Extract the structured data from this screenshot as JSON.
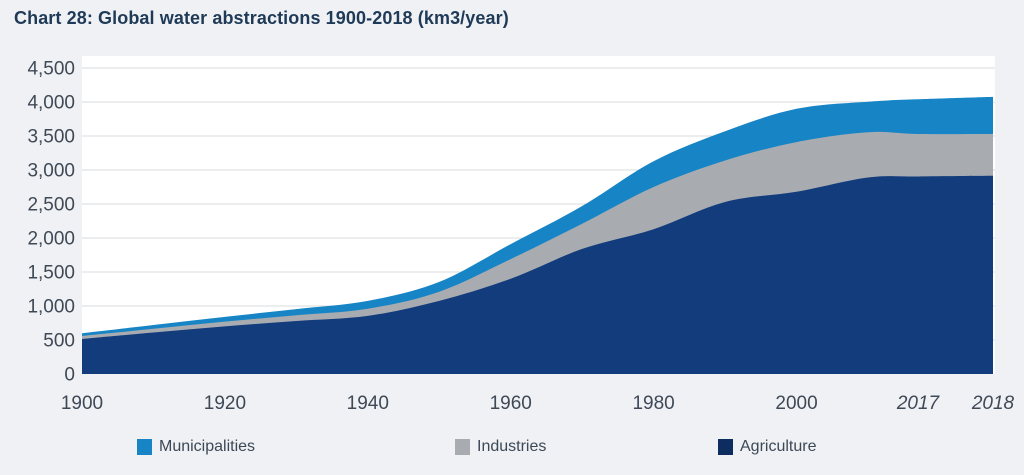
{
  "title": "Chart 28: Global water abstractions 1900-2018 (km3/year)",
  "colors": {
    "page_bg": "#eff1f5",
    "plot_bg": "#ffffff",
    "gridline": "#d8dbde",
    "title_text": "#1f3a57",
    "tick_text": "#3f4956",
    "legend_text": "#3c4855"
  },
  "chart_data": {
    "type": "area",
    "stacked": true,
    "title": "Chart 28: Global water abstractions 1900-2018 (km3/year)",
    "unit": "km3/year",
    "xlabel": "",
    "ylabel": "",
    "ylim": [
      0,
      4500
    ],
    "grid": true,
    "x": [
      1900,
      1910,
      1920,
      1930,
      1940,
      1950,
      1960,
      1970,
      1980,
      1990,
      2000,
      2010,
      2017,
      2018
    ],
    "series": [
      {
        "name": "Agriculture",
        "color": "#123c7c",
        "values": [
          515,
          610,
          700,
          780,
          855,
          1075,
          1400,
          1840,
          2130,
          2530,
          2680,
          2890,
          2905,
          2915
        ]
      },
      {
        "name": "Industries",
        "color": "#a8acb1",
        "values": [
          45,
          55,
          70,
          85,
          105,
          135,
          290,
          370,
          620,
          610,
          730,
          665,
          625,
          615
        ]
      },
      {
        "name": "Municipalities",
        "color": "#1784c5",
        "values": [
          40,
          55,
          70,
          90,
          115,
          145,
          220,
          260,
          380,
          430,
          490,
          450,
          510,
          545
        ]
      }
    ],
    "y_axis": {
      "ticks": [
        {
          "value": 0,
          "label": "0"
        },
        {
          "value": 500,
          "label": "500"
        },
        {
          "value": 1000,
          "label": "1,000"
        },
        {
          "value": 1500,
          "label": "1,500"
        },
        {
          "value": 2000,
          "label": "2,000"
        },
        {
          "value": 2500,
          "label": "2,500"
        },
        {
          "value": 3000,
          "label": "3,000"
        },
        {
          "value": 3500,
          "label": "3,500"
        },
        {
          "value": 4000,
          "label": "4,000"
        },
        {
          "value": 4500,
          "label": "4,500"
        }
      ]
    },
    "x_axis": {
      "ticks": [
        {
          "year": 1900,
          "label": "1900",
          "italic": false
        },
        {
          "year": 1920,
          "label": "1920",
          "italic": false
        },
        {
          "year": 1940,
          "label": "1940",
          "italic": false
        },
        {
          "year": 1960,
          "label": "1960",
          "italic": false
        },
        {
          "year": 1980,
          "label": "1980",
          "italic": false
        },
        {
          "year": 2000,
          "label": "2000",
          "italic": false
        },
        {
          "year": 2017,
          "label": "2017",
          "italic": true
        },
        {
          "year": 2018,
          "label": "2018",
          "italic": true
        }
      ]
    },
    "legend_position": "bottom",
    "legend_items": [
      {
        "label": "Municipalities",
        "color": "#1784c5"
      },
      {
        "label": "Industries",
        "color": "#a8acb1"
      },
      {
        "label": "Agriculture",
        "color": "#0d2d61"
      }
    ]
  }
}
